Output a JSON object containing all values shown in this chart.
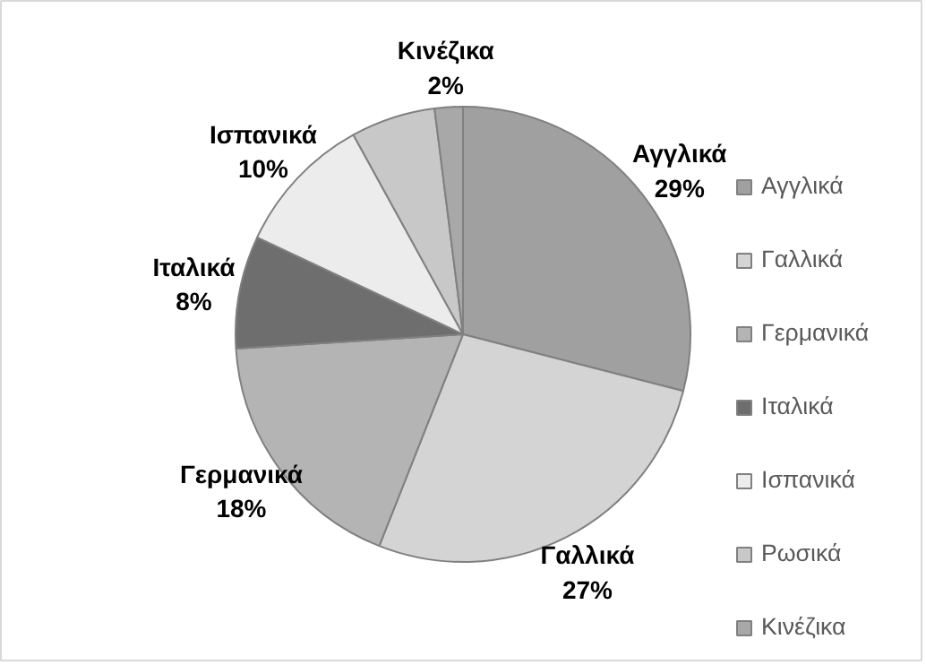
{
  "chart_data": {
    "type": "pie",
    "categories": [
      "Αγγλικά",
      "Γαλλικά",
      "Γερμανικά",
      "Ιταλικά",
      "Ισπανικά",
      "Ρωσικά",
      "Κινέζικα"
    ],
    "values": [
      29,
      27,
      18,
      8,
      10,
      6,
      2
    ],
    "value_labels": [
      "29%",
      "27%",
      "18%",
      "8%",
      "10%",
      null,
      "2%"
    ],
    "colors": [
      "#a0a0a0",
      "#d4d4d4",
      "#b4b4b4",
      "#6e6e6e",
      "#ececec",
      "#c8c8c8",
      "#a8a8a8"
    ],
    "legend": "right"
  }
}
